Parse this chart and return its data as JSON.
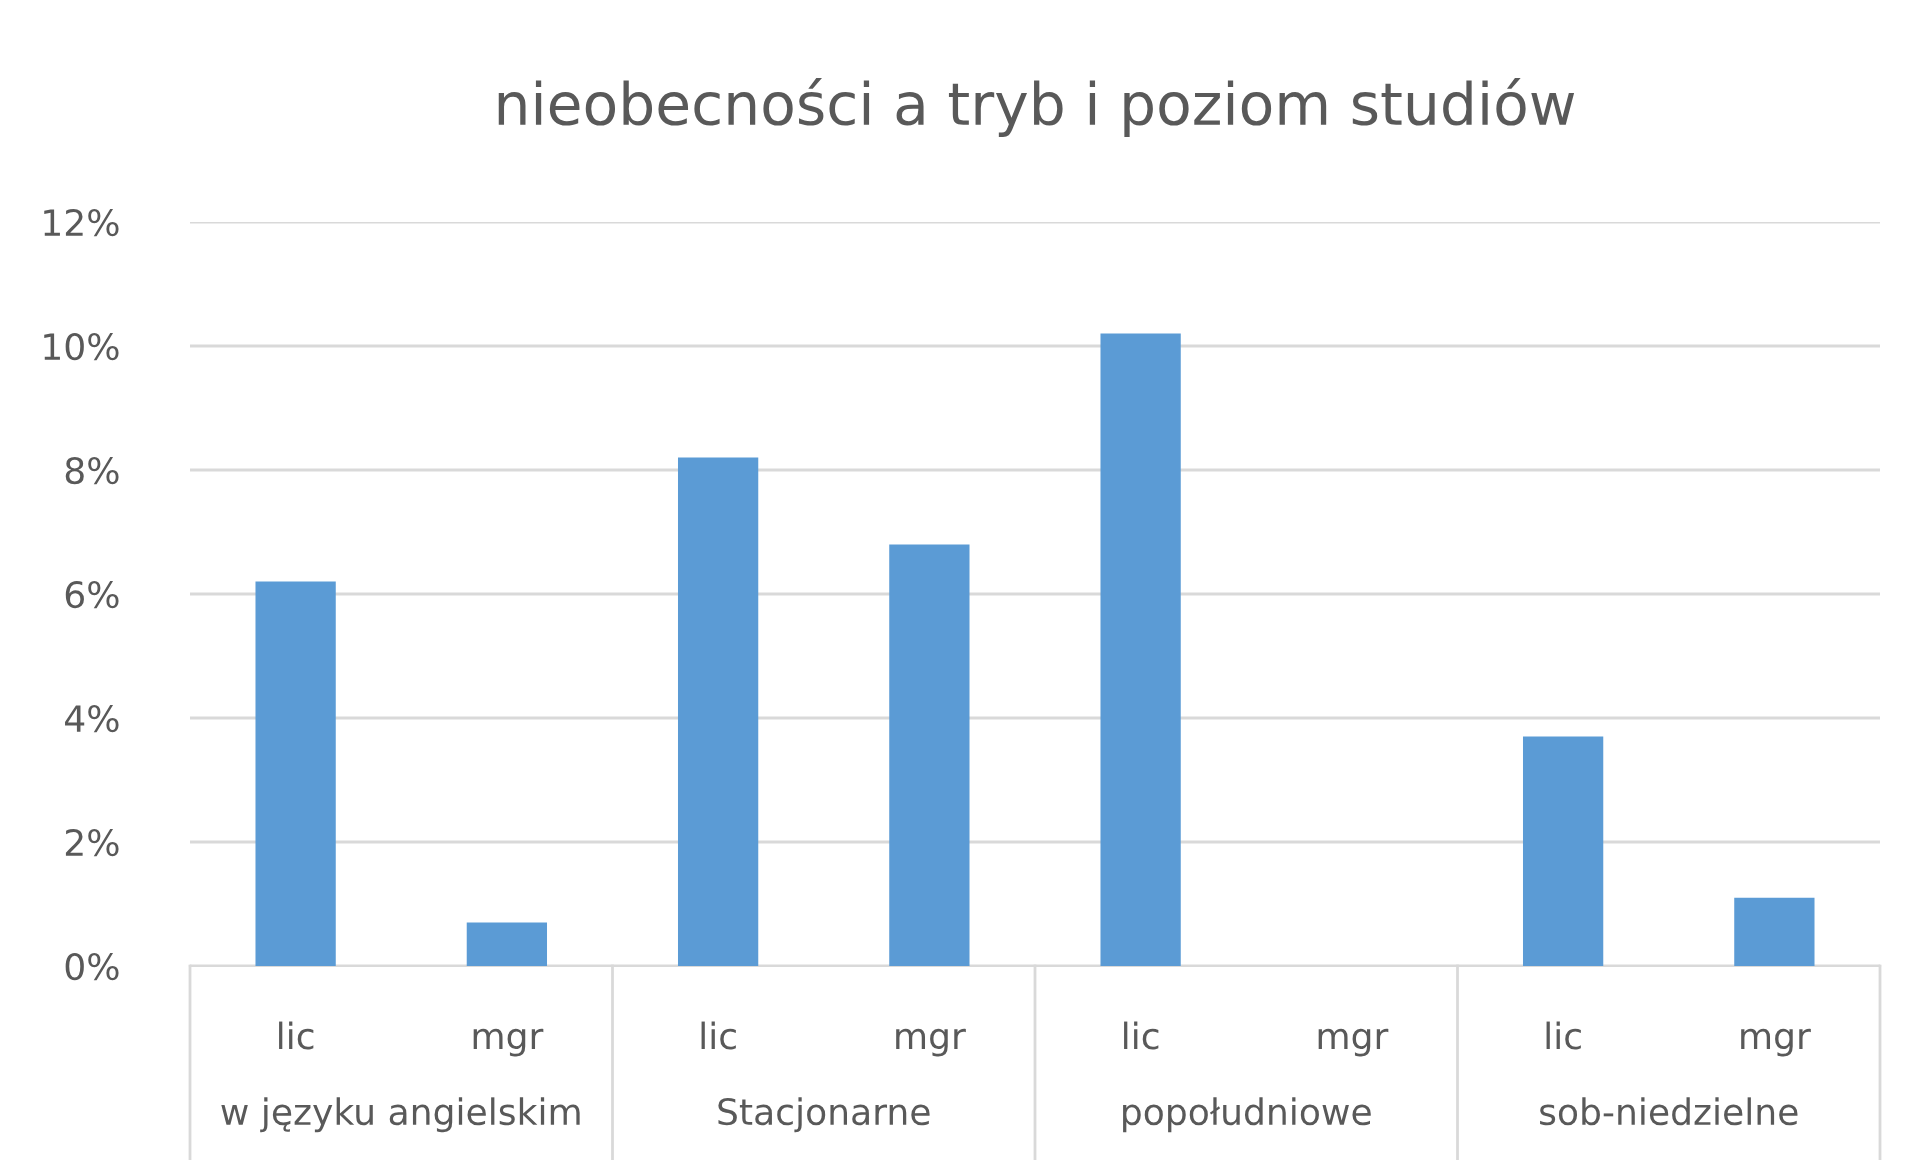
{
  "chart_data": {
    "type": "bar",
    "title": "nieobecności a tryb i poziom studiów",
    "categories": [
      "lic",
      "mgr",
      "lic",
      "mgr",
      "lic",
      "mgr",
      "lic",
      "mgr"
    ],
    "values": [
      6.2,
      0.7,
      8.2,
      6.8,
      10.2,
      0,
      3.7,
      1.1
    ],
    "color": "#5b9bd5",
    "annotations": [
      "w języku angielskim",
      "Stacjonarne",
      "popołudniowe",
      "sob-niedzielne"
    ],
    "ylim": [
      0,
      12
    ],
    "yticks": [
      {
        "value": 0,
        "label": "0%"
      },
      {
        "value": 2,
        "label": "2%"
      },
      {
        "value": 4,
        "label": "4%"
      },
      {
        "value": 6,
        "label": "6%"
      },
      {
        "value": 8,
        "label": "8%"
      },
      {
        "value": 10,
        "label": "10%"
      },
      {
        "value": 12,
        "label": "12%"
      }
    ],
    "grid": "y",
    "legend": false
  }
}
